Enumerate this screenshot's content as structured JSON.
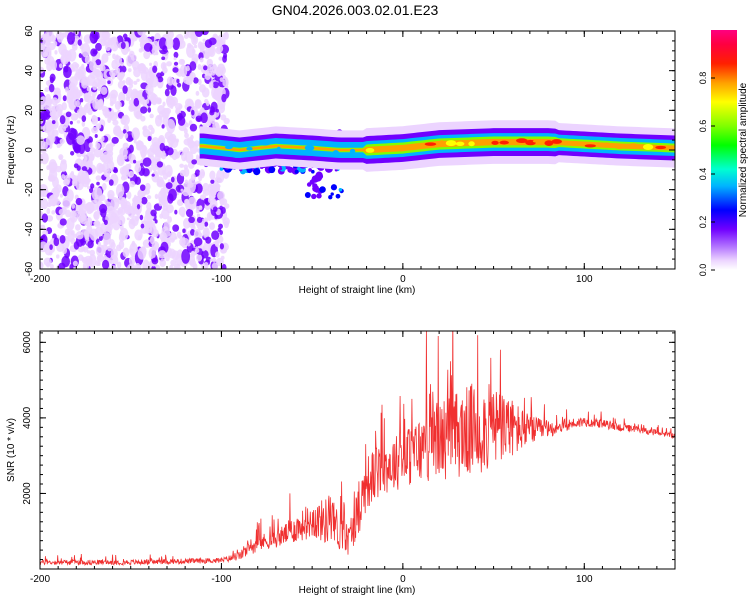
{
  "title": "GN04.2026.003.02.01.E23",
  "chart_data": [
    {
      "type": "heatmap",
      "xlabel": "Height of straight line (km)",
      "ylabel": "Frequency (Hz)",
      "xlim": [
        -200,
        150
      ],
      "ylim": [
        -60,
        60
      ],
      "xticks": [
        -200,
        -100,
        0,
        100
      ],
      "yticks": [
        -60,
        -40,
        -20,
        0,
        20,
        40,
        60
      ],
      "colorbar": {
        "label": "Normalized spectral amplitude",
        "range": [
          0,
          1
        ],
        "ticks": [
          0.0,
          0.2,
          0.4,
          0.6,
          0.8
        ]
      },
      "features": [
        {
          "name": "broadband noise speckle",
          "x_range": [
            -200,
            -97
          ],
          "freq_range": [
            -60,
            60
          ],
          "amplitude": 0.2
        },
        {
          "name": "scattered echoes",
          "x_range": [
            -100,
            -30
          ],
          "freq_range": [
            -25,
            12
          ],
          "amplitude": 0.35
        },
        {
          "name": "Doppler trace",
          "points": [
            [
              -110,
              2
            ],
            [
              -90,
              0
            ],
            [
              -70,
              2
            ],
            [
              -50,
              1
            ],
            [
              -35,
              0
            ],
            [
              -20,
              0
            ],
            [
              0,
              1
            ],
            [
              20,
              3
            ],
            [
              50,
              4
            ],
            [
              80,
              4
            ],
            [
              100,
              3
            ],
            [
              120,
              2
            ],
            [
              150,
              1
            ]
          ],
          "amplitude": 0.9
        }
      ]
    },
    {
      "type": "line",
      "xlabel": "Height of straight line (km)",
      "ylabel": "SNR (10 * v/v)",
      "xlim": [
        -200,
        150
      ],
      "ylim": [
        0,
        6300
      ],
      "xticks": [
        -200,
        -100,
        0,
        100
      ],
      "yticks": [
        2000,
        4000,
        6000
      ],
      "color": "#f03030",
      "envelope": {
        "x": [
          -200,
          -150,
          -100,
          -90,
          -80,
          -70,
          -60,
          -50,
          -40,
          -30,
          -25,
          -20,
          -10,
          0,
          10,
          20,
          30,
          40,
          50,
          60,
          70,
          80,
          90,
          100,
          110,
          120,
          130,
          150
        ],
        "base": [
          150,
          150,
          200,
          300,
          600,
          700,
          900,
          1100,
          1000,
          600,
          1200,
          2000,
          2400,
          2600,
          2800,
          3000,
          3100,
          3200,
          3300,
          3400,
          3500,
          3600,
          3750,
          3850,
          3800,
          3700,
          3650,
          3500
        ],
        "amp": [
          150,
          150,
          150,
          250,
          500,
          500,
          800,
          1000,
          1500,
          900,
          1500,
          1600,
          1600,
          1700,
          2000,
          2400,
          2600,
          2800,
          2500,
          1800,
          900,
          500,
          350,
          300,
          250,
          250,
          200,
          150
        ]
      }
    }
  ]
}
